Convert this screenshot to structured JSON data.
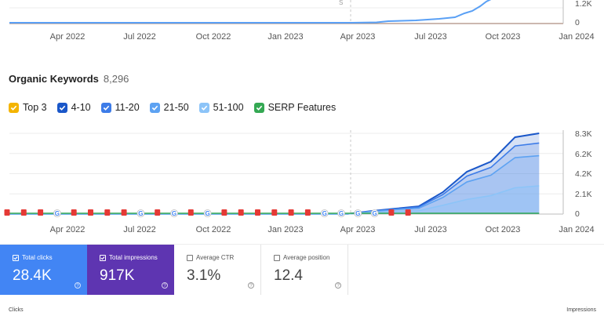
{
  "top_chart": {
    "y_ticks": [
      "1.2K",
      "0"
    ],
    "x_ticks": [
      "Apr 2022",
      "Jul 2022",
      "Oct 2022",
      "Jan 2023",
      "Apr 2023",
      "Jul 2023",
      "Oct 2023",
      "Jan 2024"
    ],
    "colors": {
      "line": "#5aa0f5",
      "cutoff": "#c9c9c9",
      "baseline": "#f4a582"
    }
  },
  "keywords": {
    "title": "Organic Keywords",
    "count": "8,296",
    "legend": [
      {
        "label": "Top 3",
        "color": "#f4b400"
      },
      {
        "label": "4-10",
        "color": "#1a57c9"
      },
      {
        "label": "11-20",
        "color": "#3d7ce8"
      },
      {
        "label": "21-50",
        "color": "#5da2f2"
      },
      {
        "label": "51-100",
        "color": "#8cc4f8"
      },
      {
        "label": "SERP Features",
        "color": "#34a853"
      }
    ]
  },
  "chart_data": {
    "type": "area",
    "y_ticks": [
      "8.3K",
      "6.2K",
      "4.2K",
      "2.1K",
      "0"
    ],
    "x_ticks": [
      "Apr 2022",
      "Jul 2022",
      "Oct 2022",
      "Jan 2023",
      "Apr 2023",
      "Jul 2023",
      "Oct 2023",
      "Jan 2024"
    ],
    "ylim": [
      0,
      8300
    ],
    "x": [
      "2023-05",
      "2023-06",
      "2023-07",
      "2023-08",
      "2023-09",
      "2023-10",
      "2023-11",
      "2023-12"
    ],
    "series": [
      {
        "name": "4-10",
        "values": [
          300,
          550,
          800,
          2250,
          4350,
          5400,
          7900,
          8300
        ],
        "color": "#1a57c9"
      },
      {
        "name": "11-20",
        "values": [
          280,
          500,
          720,
          2000,
          3900,
          4800,
          7000,
          7300
        ],
        "color": "#3d7ce8"
      },
      {
        "name": "21-50",
        "values": [
          250,
          450,
          600,
          1700,
          3300,
          4000,
          5800,
          6000
        ],
        "color": "#5da2f2"
      },
      {
        "name": "51-100",
        "values": [
          150,
          250,
          350,
          900,
          1500,
          1900,
          2700,
          2900
        ],
        "color": "#8cc4f8"
      },
      {
        "name": "SERP Features",
        "values": [
          0,
          0,
          0,
          0,
          0,
          0,
          0,
          0
        ],
        "color": "#34a853"
      }
    ],
    "grid": true,
    "legend_position": "top-left",
    "marker_sequence": [
      "flag",
      "flag",
      "flag",
      "google",
      "flag",
      "flag",
      "flag",
      "flag",
      "google",
      "flag",
      "google",
      "flag",
      "google",
      "flag",
      "flag",
      "flag",
      "flag",
      "flag",
      "flag",
      "google",
      "google",
      "google",
      "google",
      "flag",
      "flag"
    ],
    "marker_colors": {
      "flag": "#e53935",
      "google": "#ffffff"
    }
  },
  "gsc": {
    "cards": [
      {
        "label": "Total clicks",
        "value": "28.4K",
        "checked": true
      },
      {
        "label": "Total impressions",
        "value": "917K",
        "checked": true
      },
      {
        "label": "Average CTR",
        "value": "3.1%",
        "checked": false
      },
      {
        "label": "Average position",
        "value": "12.4",
        "checked": false
      }
    ],
    "left_axis_label": "Clicks",
    "right_axis_label": "Impressions",
    "colors": {
      "clicks": "#4285f4",
      "impressions": "#5e35b1"
    }
  }
}
